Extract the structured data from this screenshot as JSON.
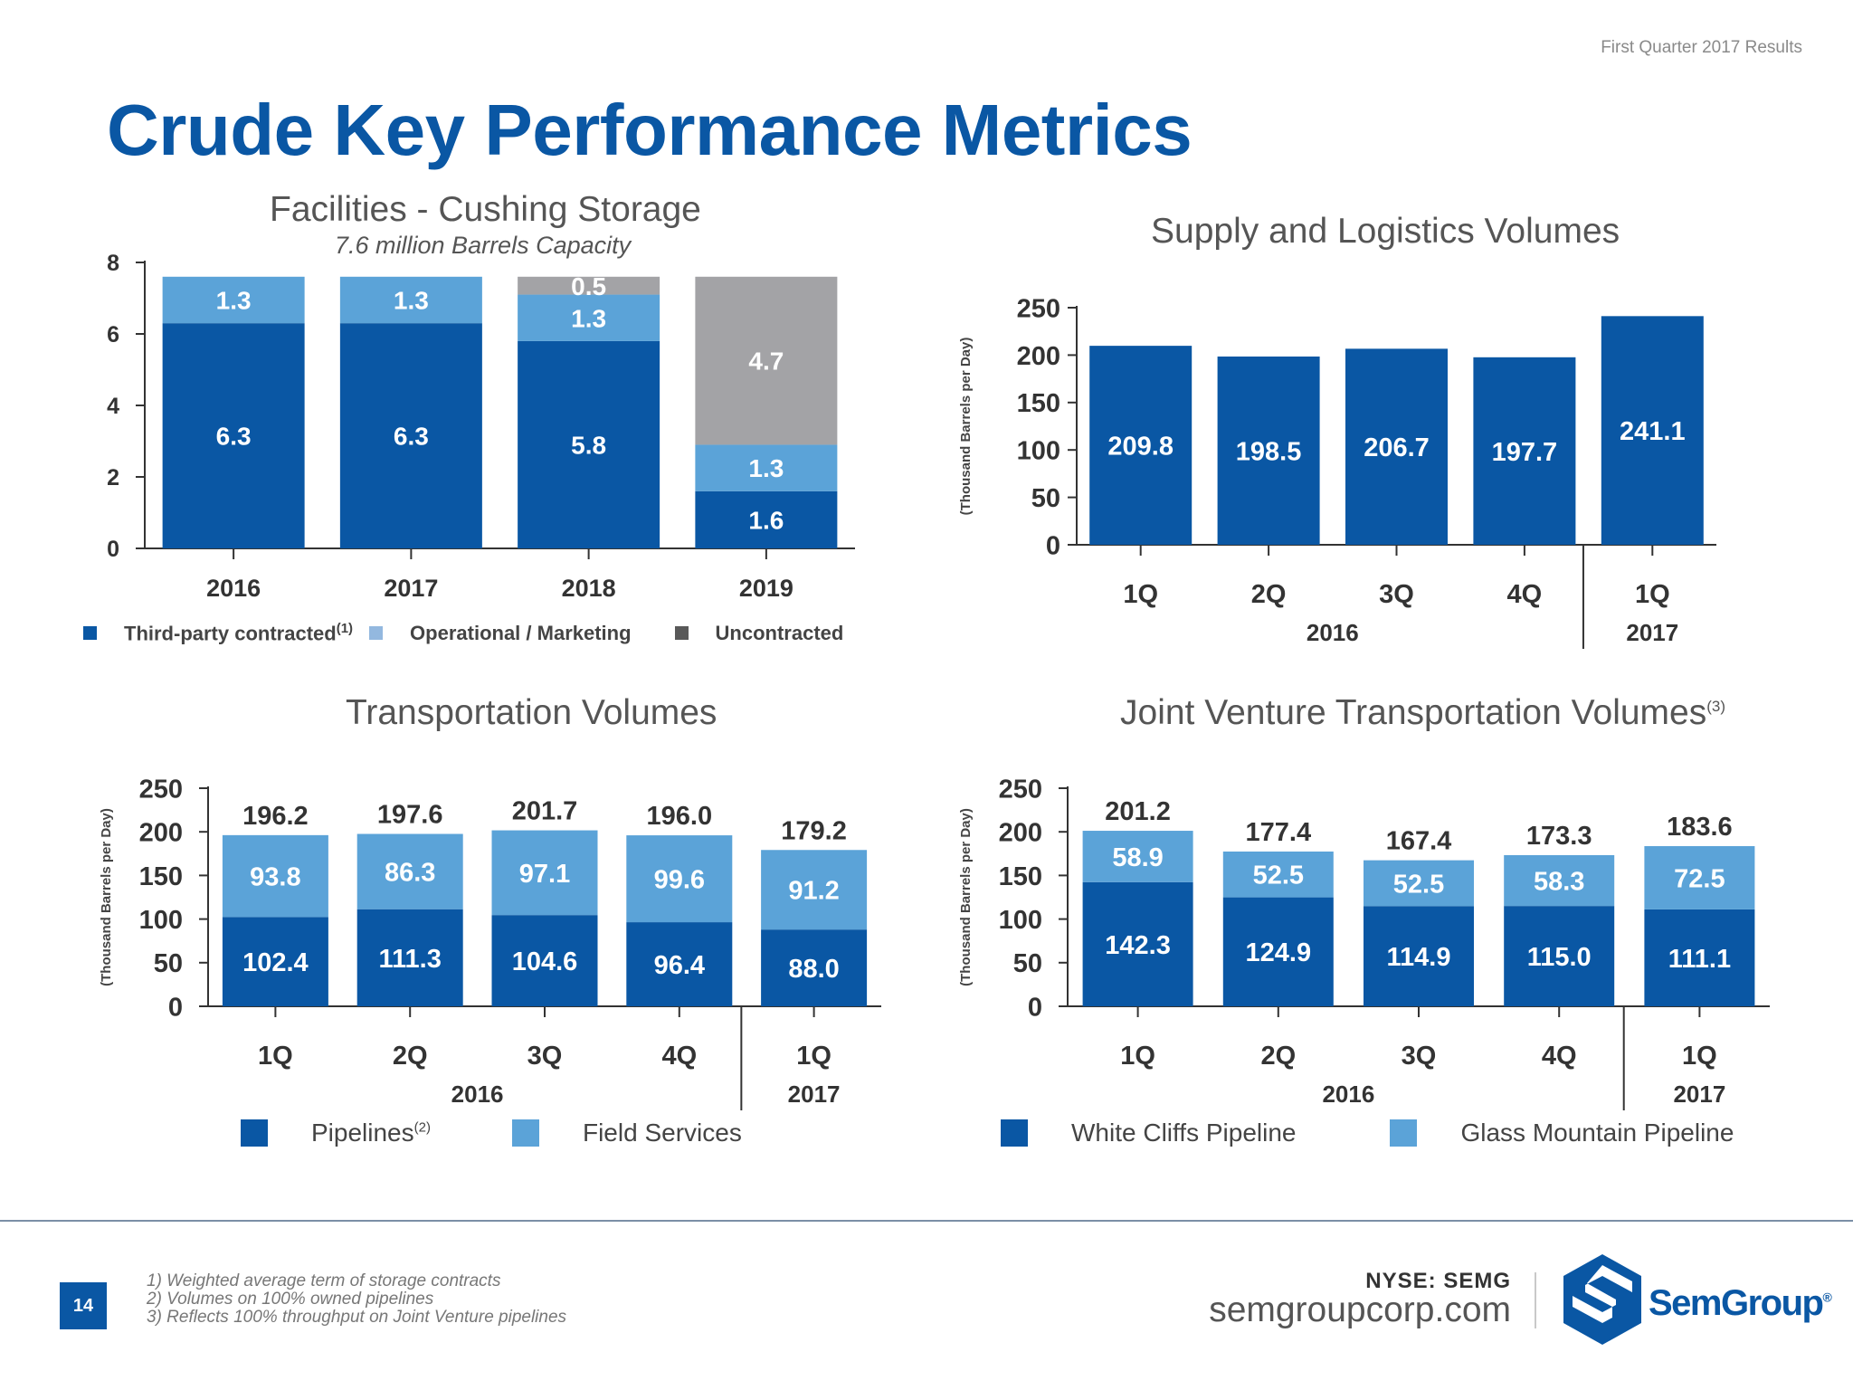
{
  "header": {
    "top_right_label": "First Quarter 2017 Results",
    "title": "Crude Key Performance Metrics"
  },
  "colors": {
    "dark_blue": "#0a57a4",
    "light_blue": "#5ba3d8",
    "pale_blue": "#93b8df",
    "gray": "#a3a3a6",
    "dark_gray": "#595959",
    "axis": "#333333"
  },
  "chart_data": [
    {
      "id": "cushing",
      "type": "bar",
      "stacked": true,
      "title": "Facilities - Cushing Storage",
      "subtitle": "7.6 million Barrels Capacity",
      "categories": [
        "2016",
        "2017",
        "2018",
        "2019"
      ],
      "ylim": [
        0,
        8
      ],
      "yticks": [
        "0",
        "2",
        "4",
        "6",
        "8"
      ],
      "series": [
        {
          "name": "Third-party contracted",
          "name_sup": "(1)",
          "values": [
            6.3,
            6.3,
            5.8,
            1.6
          ],
          "labels": [
            "6.3",
            "6.3",
            "5.8",
            "1.6"
          ]
        },
        {
          "name": "Operational / Marketing",
          "values": [
            1.3,
            1.3,
            1.3,
            1.3
          ],
          "labels": [
            "1.3",
            "1.3",
            "1.3",
            "1.3"
          ]
        },
        {
          "name": "Uncontracted",
          "values": [
            0,
            0,
            0.5,
            4.7
          ],
          "labels": [
            "",
            "",
            "0.5",
            "4.7"
          ]
        }
      ],
      "legend": "bottom"
    },
    {
      "id": "supply",
      "type": "bar",
      "title": "Supply and Logistics Volumes",
      "ylabel": "(Thousand Barrels per Day)",
      "categories": [
        "1Q",
        "2Q",
        "3Q",
        "4Q",
        "1Q"
      ],
      "groups": [
        "2016",
        "2017"
      ],
      "ylim": [
        0,
        250
      ],
      "yticks": [
        "0",
        "50",
        "100",
        "150",
        "200",
        "250"
      ],
      "series": [
        {
          "name": "Volumes",
          "values": [
            209.8,
            198.5,
            206.7,
            197.7,
            241.1
          ],
          "labels": [
            "209.8",
            "198.5",
            "206.7",
            "197.7",
            "241.1"
          ]
        }
      ]
    },
    {
      "id": "transport",
      "type": "bar",
      "stacked": true,
      "title": "Transportation Volumes",
      "ylabel": "(Thousand Barrels per Day)",
      "categories": [
        "1Q",
        "2Q",
        "3Q",
        "4Q",
        "1Q"
      ],
      "groups": [
        "2016",
        "2017"
      ],
      "ylim": [
        0,
        250
      ],
      "yticks": [
        "0",
        "50",
        "100",
        "150",
        "200",
        "250"
      ],
      "totals": [
        "196.2",
        "197.6",
        "201.7",
        "196.0",
        "179.2"
      ],
      "series": [
        {
          "name": "Pipelines",
          "name_sup": "(2)",
          "values": [
            102.4,
            111.3,
            104.6,
            96.4,
            88.0
          ],
          "labels": [
            "102.4",
            "111.3",
            "104.6",
            "96.4",
            "88.0"
          ]
        },
        {
          "name": "Field Services",
          "values": [
            93.8,
            86.3,
            97.1,
            99.6,
            91.2
          ],
          "labels": [
            "93.8",
            "86.3",
            "97.1",
            "99.6",
            "91.2"
          ]
        }
      ],
      "legend": "bottom"
    },
    {
      "id": "jv",
      "type": "bar",
      "stacked": true,
      "title": "Joint Venture Transportation Volumes",
      "title_sup": "(3)",
      "ylabel": "(Thousand Barrels per Day)",
      "categories": [
        "1Q",
        "2Q",
        "3Q",
        "4Q",
        "1Q"
      ],
      "groups": [
        "2016",
        "2017"
      ],
      "ylim": [
        0,
        250
      ],
      "yticks": [
        "0",
        "50",
        "100",
        "150",
        "200",
        "250"
      ],
      "totals": [
        "201.2",
        "177.4",
        "167.4",
        "173.3",
        "183.6"
      ],
      "series": [
        {
          "name": "White Cliffs Pipeline",
          "values": [
            142.3,
            124.9,
            114.9,
            115.0,
            111.1
          ],
          "labels": [
            "142.3",
            "124.9",
            "114.9",
            "115.0",
            "111.1"
          ]
        },
        {
          "name": "Glass Mountain Pipeline",
          "values": [
            58.9,
            52.5,
            52.5,
            58.3,
            72.5
          ],
          "labels": [
            "58.9",
            "52.5",
            "52.5",
            "58.3",
            "72.5"
          ]
        }
      ],
      "legend": "bottom"
    }
  ],
  "footer": {
    "page_number": "14",
    "footnotes": [
      "1) Weighted average term of storage contracts",
      "2) Volumes on 100% owned pipelines",
      "3) Reflects 100% throughput on Joint Venture pipelines"
    ],
    "ticker": "NYSE: SEMG",
    "website": "semgroupcorp.com",
    "logo_text": "SemGroup",
    "logo_mark": "®"
  }
}
